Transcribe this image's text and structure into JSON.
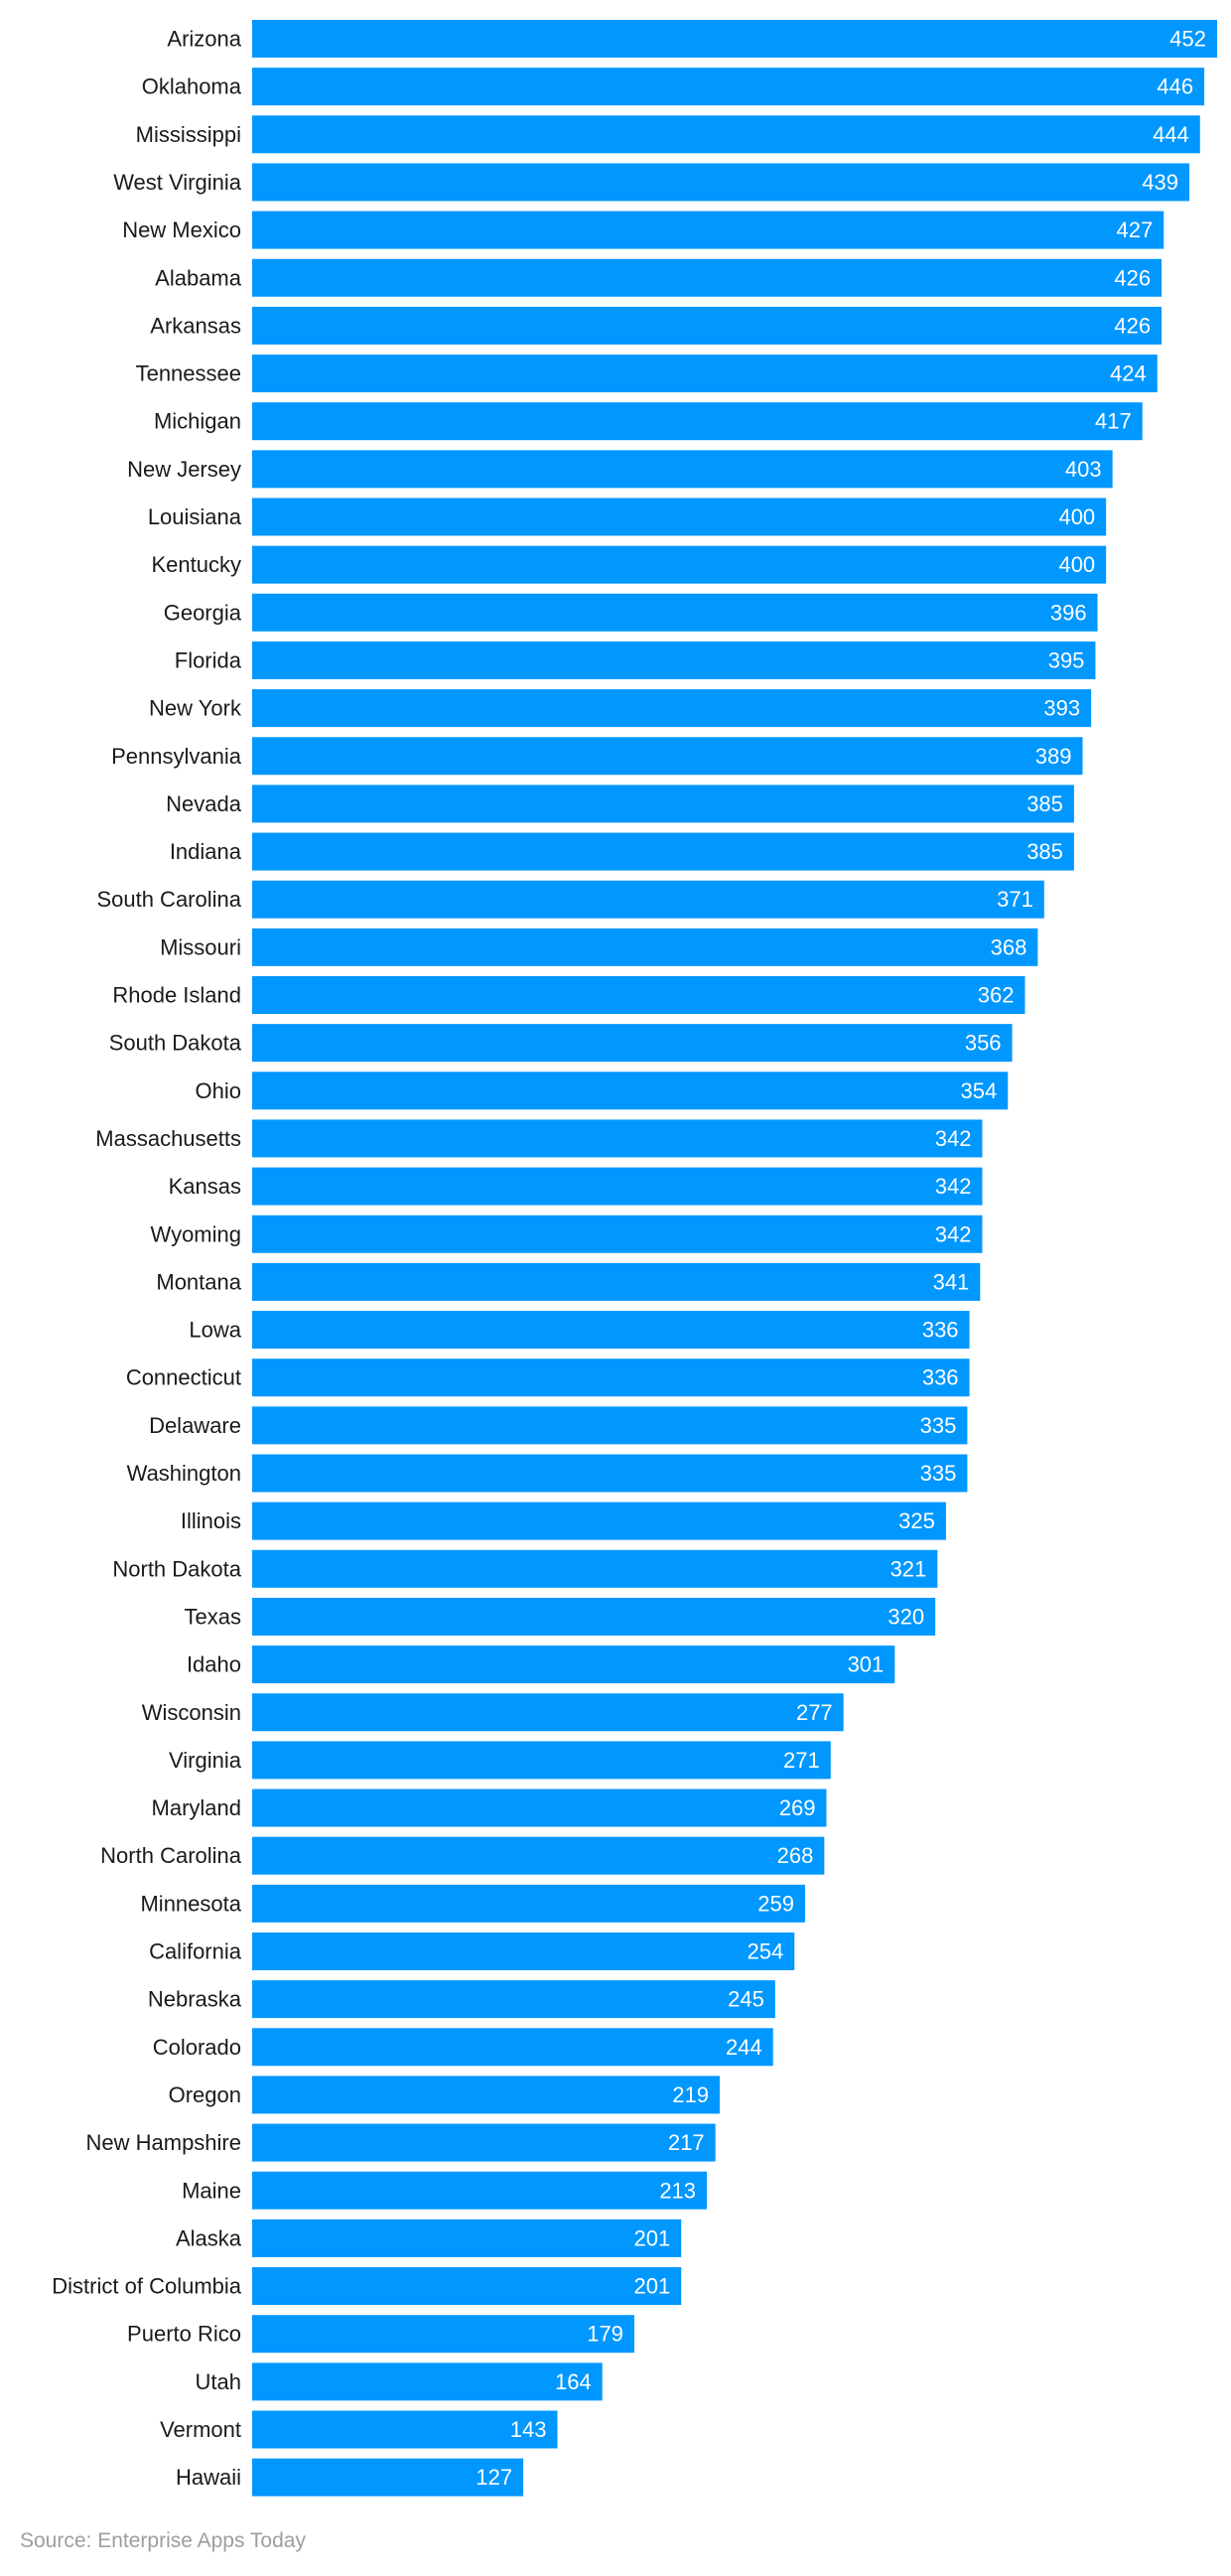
{
  "chart_data": {
    "type": "bar",
    "orientation": "horizontal",
    "title": "",
    "xlabel": "",
    "ylabel": "",
    "grid": false,
    "legend": "none",
    "bar_color": "#0097FF",
    "label_color": "#ffffff",
    "category_color": "#1a1a1a",
    "xlim": [
      0,
      452
    ],
    "categories": [
      "Arizona",
      "Oklahoma",
      "Mississippi",
      "West Virginia",
      "New Mexico",
      "Alabama",
      "Arkansas",
      "Tennessee",
      "Michigan",
      "New Jersey",
      "Louisiana",
      "Kentucky",
      "Georgia",
      "Florida",
      "New York",
      "Pennsylvania",
      "Nevada",
      "Indiana",
      "South Carolina",
      "Missouri",
      "Rhode Island",
      "South Dakota",
      "Ohio",
      "Massachusetts",
      "Kansas",
      "Wyoming",
      "Montana",
      "Lowa",
      "Connecticut",
      "Delaware",
      "Washington",
      "Illinois",
      "North Dakota",
      "Texas",
      "Idaho",
      "Wisconsin",
      "Virginia",
      "Maryland",
      "North Carolina",
      "Minnesota",
      "California",
      "Nebraska",
      "Colorado",
      "Oregon",
      "New Hampshire",
      "Maine",
      "Alaska",
      "District of Columbia",
      "Puerto Rico",
      "Utah",
      "Vermont",
      "Hawaii"
    ],
    "values": [
      452,
      446,
      444,
      439,
      427,
      426,
      426,
      424,
      417,
      403,
      400,
      400,
      396,
      395,
      393,
      389,
      385,
      385,
      371,
      368,
      362,
      356,
      354,
      342,
      342,
      342,
      341,
      336,
      336,
      335,
      335,
      325,
      321,
      320,
      301,
      277,
      271,
      269,
      268,
      259,
      254,
      245,
      244,
      219,
      217,
      213,
      201,
      201,
      179,
      164,
      143,
      127
    ]
  },
  "source": "Source: Enterprise Apps Today"
}
